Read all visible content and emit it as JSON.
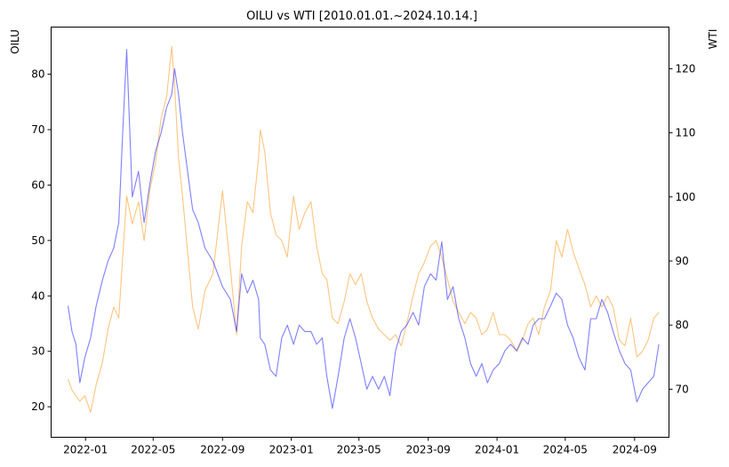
{
  "chart_data": {
    "type": "line",
    "title": "OILU vs WTI [2010.01.01.~2024.10.14.]",
    "x_ticks": [
      "2022-01",
      "2022-05",
      "2022-09",
      "2023-01",
      "2023-05",
      "2023-09",
      "2024-01",
      "2024-05",
      "2024-09"
    ],
    "xlim": [
      "2021-11-01",
      "2024-11-01"
    ],
    "left_axis": {
      "label": "OILU",
      "color": "#ff8c00",
      "ylim": [
        14.5,
        88.5
      ],
      "ticks": [
        20,
        30,
        40,
        50,
        60,
        70,
        80
      ]
    },
    "right_axis": {
      "label": "WTI",
      "color": "#0000ff",
      "ylim": [
        62.5,
        126.5
      ],
      "ticks": [
        70,
        80,
        90,
        100,
        110,
        120
      ]
    },
    "series": [
      {
        "name": "OILU",
        "axis": "left",
        "color": "#ff8c00",
        "x": [
          "2021-12-01",
          "2021-12-08",
          "2021-12-15",
          "2021-12-22",
          "2021-12-31",
          "2022-01-10",
          "2022-01-20",
          "2022-01-31",
          "2022-02-10",
          "2022-02-20",
          "2022-03-01",
          "2022-03-08",
          "2022-03-15",
          "2022-03-25",
          "2022-04-05",
          "2022-04-15",
          "2022-04-25",
          "2022-05-05",
          "2022-05-15",
          "2022-05-25",
          "2022-06-03",
          "2022-06-08",
          "2022-06-15",
          "2022-06-22",
          "2022-07-01",
          "2022-07-10",
          "2022-07-20",
          "2022-08-01",
          "2022-08-15",
          "2022-09-01",
          "2022-09-15",
          "2022-09-26",
          "2022-10-05",
          "2022-10-15",
          "2022-10-25",
          "2022-11-04",
          "2022-11-07",
          "2022-11-15",
          "2022-11-25",
          "2022-12-05",
          "2022-12-15",
          "2022-12-25",
          "2023-01-05",
          "2023-01-15",
          "2023-01-25",
          "2023-02-05",
          "2023-02-15",
          "2023-02-25",
          "2023-03-05",
          "2023-03-15",
          "2023-03-25",
          "2023-04-05",
          "2023-04-15",
          "2023-04-25",
          "2023-05-05",
          "2023-05-15",
          "2023-05-25",
          "2023-06-05",
          "2023-06-15",
          "2023-06-25",
          "2023-07-05",
          "2023-07-15",
          "2023-07-25",
          "2023-08-05",
          "2023-08-15",
          "2023-08-25",
          "2023-09-05",
          "2023-09-15",
          "2023-09-25",
          "2023-10-05",
          "2023-10-15",
          "2023-10-25",
          "2023-11-05",
          "2023-11-15",
          "2023-11-25",
          "2023-12-05",
          "2023-12-15",
          "2023-12-25",
          "2024-01-05",
          "2024-01-15",
          "2024-01-25",
          "2024-02-05",
          "2024-02-15",
          "2024-02-25",
          "2024-03-05",
          "2024-03-15",
          "2024-03-25",
          "2024-04-05",
          "2024-04-15",
          "2024-04-25",
          "2024-05-05",
          "2024-05-15",
          "2024-05-25",
          "2024-06-05",
          "2024-06-15",
          "2024-06-25",
          "2024-07-05",
          "2024-07-15",
          "2024-07-25",
          "2024-08-05",
          "2024-08-15",
          "2024-08-25",
          "2024-09-05",
          "2024-09-15",
          "2024-09-25",
          "2024-10-05",
          "2024-10-14"
        ],
        "values": [
          25,
          23,
          22,
          21,
          22,
          19,
          24,
          28,
          34,
          38,
          36,
          47,
          58,
          53,
          57,
          50,
          59,
          64,
          72,
          76,
          85,
          78,
          65,
          58,
          48,
          38,
          34,
          41,
          44,
          59,
          45,
          33,
          49,
          57,
          55,
          65,
          70,
          66,
          55,
          51,
          50,
          47,
          58,
          52,
          55,
          57,
          49,
          44,
          43,
          36,
          35,
          39,
          44,
          42,
          44,
          39,
          36,
          34,
          33,
          32,
          33,
          31,
          35,
          40,
          44,
          46,
          49,
          50,
          47,
          43,
          39,
          37,
          35,
          37,
          36,
          33,
          34,
          37,
          33,
          33,
          32,
          30,
          32,
          35,
          36,
          33,
          38,
          41,
          50,
          47,
          52,
          48,
          45,
          42,
          38,
          40,
          38,
          40,
          38,
          32,
          31,
          36,
          29,
          30,
          32,
          36,
          37
        ]
      },
      {
        "name": "WTI",
        "axis": "right",
        "color": "#0000ff",
        "x": [
          "2021-12-01",
          "2021-12-08",
          "2021-12-15",
          "2021-12-22",
          "2021-12-31",
          "2022-01-10",
          "2022-01-20",
          "2022-01-31",
          "2022-02-10",
          "2022-02-20",
          "2022-03-01",
          "2022-03-08",
          "2022-03-15",
          "2022-03-25",
          "2022-04-05",
          "2022-04-15",
          "2022-04-25",
          "2022-05-05",
          "2022-05-15",
          "2022-05-25",
          "2022-06-03",
          "2022-06-08",
          "2022-06-15",
          "2022-06-22",
          "2022-07-01",
          "2022-07-10",
          "2022-07-20",
          "2022-08-01",
          "2022-08-15",
          "2022-09-01",
          "2022-09-15",
          "2022-09-26",
          "2022-10-05",
          "2022-10-15",
          "2022-10-25",
          "2022-11-04",
          "2022-11-07",
          "2022-11-15",
          "2022-11-25",
          "2022-12-05",
          "2022-12-15",
          "2022-12-25",
          "2023-01-05",
          "2023-01-15",
          "2023-01-25",
          "2023-02-05",
          "2023-02-15",
          "2023-02-25",
          "2023-03-05",
          "2023-03-15",
          "2023-03-25",
          "2023-04-05",
          "2023-04-15",
          "2023-04-25",
          "2023-05-05",
          "2023-05-15",
          "2023-05-25",
          "2023-06-05",
          "2023-06-15",
          "2023-06-25",
          "2023-07-05",
          "2023-07-15",
          "2023-07-25",
          "2023-08-05",
          "2023-08-15",
          "2023-08-25",
          "2023-09-05",
          "2023-09-15",
          "2023-09-25",
          "2023-10-05",
          "2023-10-15",
          "2023-10-25",
          "2023-11-05",
          "2023-11-15",
          "2023-11-25",
          "2023-12-05",
          "2023-12-15",
          "2023-12-25",
          "2024-01-05",
          "2024-01-15",
          "2024-01-25",
          "2024-02-05",
          "2024-02-15",
          "2024-02-25",
          "2024-03-05",
          "2024-03-15",
          "2024-03-25",
          "2024-04-05",
          "2024-04-15",
          "2024-04-25",
          "2024-05-05",
          "2024-05-15",
          "2024-05-25",
          "2024-06-05",
          "2024-06-15",
          "2024-06-25",
          "2024-07-05",
          "2024-07-15",
          "2024-07-25",
          "2024-08-05",
          "2024-08-15",
          "2024-08-25",
          "2024-09-05",
          "2024-09-15",
          "2024-09-25",
          "2024-10-05",
          "2024-10-14"
        ],
        "values": [
          83,
          79,
          77,
          71,
          75,
          78,
          83,
          87,
          90,
          92,
          96,
          110,
          123,
          100,
          104,
          96,
          102,
          107,
          110,
          114,
          116,
          120,
          116,
          110,
          104,
          98,
          96,
          92,
          90,
          86,
          84,
          79,
          88,
          85,
          87,
          84,
          78,
          77,
          73,
          72,
          78,
          80,
          77,
          80,
          79,
          79,
          77,
          78,
          72,
          67,
          72,
          78,
          81,
          78,
          74,
          70,
          72,
          70,
          72,
          69,
          76,
          79,
          80,
          82,
          80,
          86,
          88,
          87,
          93,
          84,
          86,
          81,
          78,
          74,
          72,
          74,
          71,
          73,
          74,
          76,
          77,
          76,
          78,
          77,
          80,
          81,
          81,
          83,
          85,
          84,
          80,
          78,
          75,
          73,
          81,
          81,
          84,
          82,
          79,
          76,
          74,
          73,
          68,
          70,
          71,
          72,
          77
        ]
      }
    ]
  }
}
